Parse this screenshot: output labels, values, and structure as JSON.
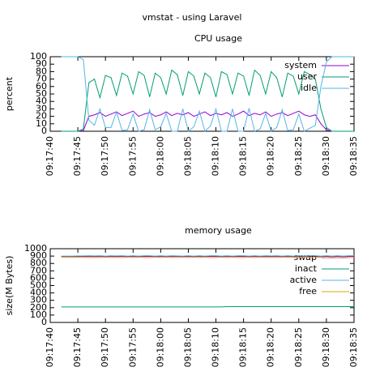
{
  "title": "vmstat - using Laravel",
  "chart_data": [
    {
      "type": "line",
      "title": "CPU usage",
      "y_label": "percent",
      "categories": [
        "09:17:40",
        null,
        null,
        null,
        null,
        "09:17:45",
        null,
        null,
        null,
        null,
        "09:17:50",
        null,
        null,
        null,
        null,
        "09:17:55",
        null,
        null,
        null,
        null,
        "09:18:00",
        null,
        null,
        null,
        null,
        "09:18:05",
        null,
        null,
        null,
        null,
        "09:18:10",
        null,
        null,
        null,
        null,
        "09:18:15",
        null,
        null,
        null,
        null,
        "09:18:20",
        null,
        null,
        null,
        null,
        "09:18:25",
        null,
        null,
        null,
        null,
        "09:18:30",
        null,
        null,
        null,
        null,
        "09:18:35"
      ],
      "ylim": [
        0,
        100
      ],
      "yticks": [
        0,
        10,
        20,
        30,
        40,
        50,
        60,
        70,
        80,
        90,
        100
      ],
      "legend": "top-right",
      "series": [
        {
          "name": "system",
          "color": "#9400d3",
          "values": [
            null,
            null,
            0,
            0,
            0,
            0,
            1,
            20,
            22,
            25,
            20,
            23,
            26,
            21,
            24,
            27,
            20,
            23,
            25,
            20,
            22,
            26,
            21,
            24,
            22,
            25,
            20,
            23,
            26,
            21,
            24,
            22,
            25,
            20,
            23,
            27,
            21,
            24,
            22,
            26,
            20,
            23,
            25,
            21,
            24,
            27,
            22,
            20,
            22,
            10,
            2,
            0,
            0,
            0,
            0,
            0
          ]
        },
        {
          "name": "user",
          "color": "#009e73",
          "values": [
            null,
            null,
            0,
            0,
            0,
            0,
            3,
            65,
            70,
            45,
            75,
            72,
            48,
            78,
            74,
            50,
            80,
            75,
            46,
            78,
            72,
            50,
            82,
            76,
            48,
            80,
            74,
            50,
            78,
            72,
            46,
            80,
            76,
            50,
            78,
            74,
            48,
            82,
            75,
            50,
            80,
            72,
            46,
            78,
            74,
            50,
            80,
            76,
            70,
            30,
            5,
            0,
            0,
            0,
            0,
            0
          ]
        },
        {
          "name": "idle",
          "color": "#56b4e9",
          "values": [
            null,
            null,
            100,
            100,
            100,
            100,
            96,
            15,
            8,
            30,
            5,
            5,
            26,
            1,
            2,
            23,
            0,
            2,
            29,
            2,
            6,
            24,
            0,
            0,
            30,
            0,
            6,
            27,
            0,
            7,
            30,
            0,
            0,
            30,
            0,
            0,
            31,
            0,
            3,
            24,
            0,
            5,
            29,
            1,
            2,
            23,
            0,
            4,
            8,
            60,
            93,
            100,
            100,
            100,
            100,
            100
          ]
        }
      ]
    },
    {
      "type": "line",
      "title": "memory usage",
      "y_label": "size(M Bytes)",
      "categories": [
        "09:17:40",
        null,
        null,
        null,
        null,
        "09:17:45",
        null,
        null,
        null,
        null,
        "09:17:50",
        null,
        null,
        null,
        null,
        "09:17:55",
        null,
        null,
        null,
        null,
        "09:18:00",
        null,
        null,
        null,
        null,
        "09:18:05",
        null,
        null,
        null,
        null,
        "09:18:10",
        null,
        null,
        null,
        null,
        "09:18:15",
        null,
        null,
        null,
        null,
        "09:18:20",
        null,
        null,
        null,
        null,
        "09:18:25",
        null,
        null,
        null,
        null,
        "09:18:30",
        null,
        null,
        null,
        null,
        "09:18:35"
      ],
      "ylim": [
        0,
        1000
      ],
      "yticks": [
        0,
        100,
        200,
        300,
        400,
        500,
        600,
        700,
        800,
        900,
        1000
      ],
      "legend": "top-right",
      "series": [
        {
          "name": "swap",
          "color": "#9400d3",
          "values": [
            null,
            null,
            895,
            895,
            895,
            895,
            895,
            895,
            895,
            895,
            895,
            895,
            895,
            895,
            895,
            895,
            895,
            895,
            895,
            895,
            895,
            895,
            895,
            895,
            895,
            895,
            895,
            895,
            895,
            895,
            895,
            895,
            895,
            895,
            895,
            895,
            895,
            895,
            895,
            895,
            895,
            895,
            895,
            895,
            895,
            895,
            895,
            895,
            895,
            895,
            895,
            895,
            895,
            895,
            895,
            895
          ]
        },
        {
          "name": "inact",
          "color": "#009e73",
          "values": [
            null,
            null,
            210,
            210,
            210,
            210,
            210,
            210,
            210,
            210,
            210,
            210,
            210,
            210,
            210,
            210,
            210,
            210,
            210,
            210,
            210,
            210,
            210,
            210,
            210,
            210,
            210,
            210,
            210,
            210,
            210,
            210,
            215,
            215,
            215,
            215,
            215,
            215,
            215,
            215,
            215,
            215,
            215,
            215,
            215,
            215,
            215,
            215,
            215,
            215,
            215,
            215,
            215,
            215,
            215,
            215
          ]
        },
        {
          "name": "active",
          "color": "#56b4e9",
          "values": [
            null,
            null,
            900,
            900,
            900,
            902,
            902,
            905,
            903,
            905,
            900,
            905,
            902,
            905,
            900,
            905,
            900,
            905,
            905,
            900,
            905,
            900,
            905,
            903,
            900,
            905,
            900,
            905,
            900,
            905,
            905,
            900,
            905,
            900,
            905,
            905,
            900,
            905,
            900,
            905,
            902,
            905,
            900,
            905,
            900,
            905,
            900,
            905,
            905,
            900,
            905,
            900,
            905,
            900,
            905,
            905
          ]
        },
        {
          "name": "free",
          "color": "#e69f00",
          "values": [
            null,
            null,
            885,
            885,
            885,
            883,
            883,
            880,
            882,
            880,
            885,
            880,
            883,
            880,
            885,
            880,
            885,
            880,
            880,
            885,
            880,
            885,
            880,
            882,
            885,
            880,
            885,
            880,
            885,
            880,
            880,
            885,
            880,
            885,
            880,
            880,
            885,
            880,
            885,
            880,
            883,
            880,
            885,
            880,
            885,
            880,
            885,
            880,
            880,
            885,
            880,
            885,
            880,
            885,
            880,
            880
          ]
        }
      ]
    }
  ]
}
